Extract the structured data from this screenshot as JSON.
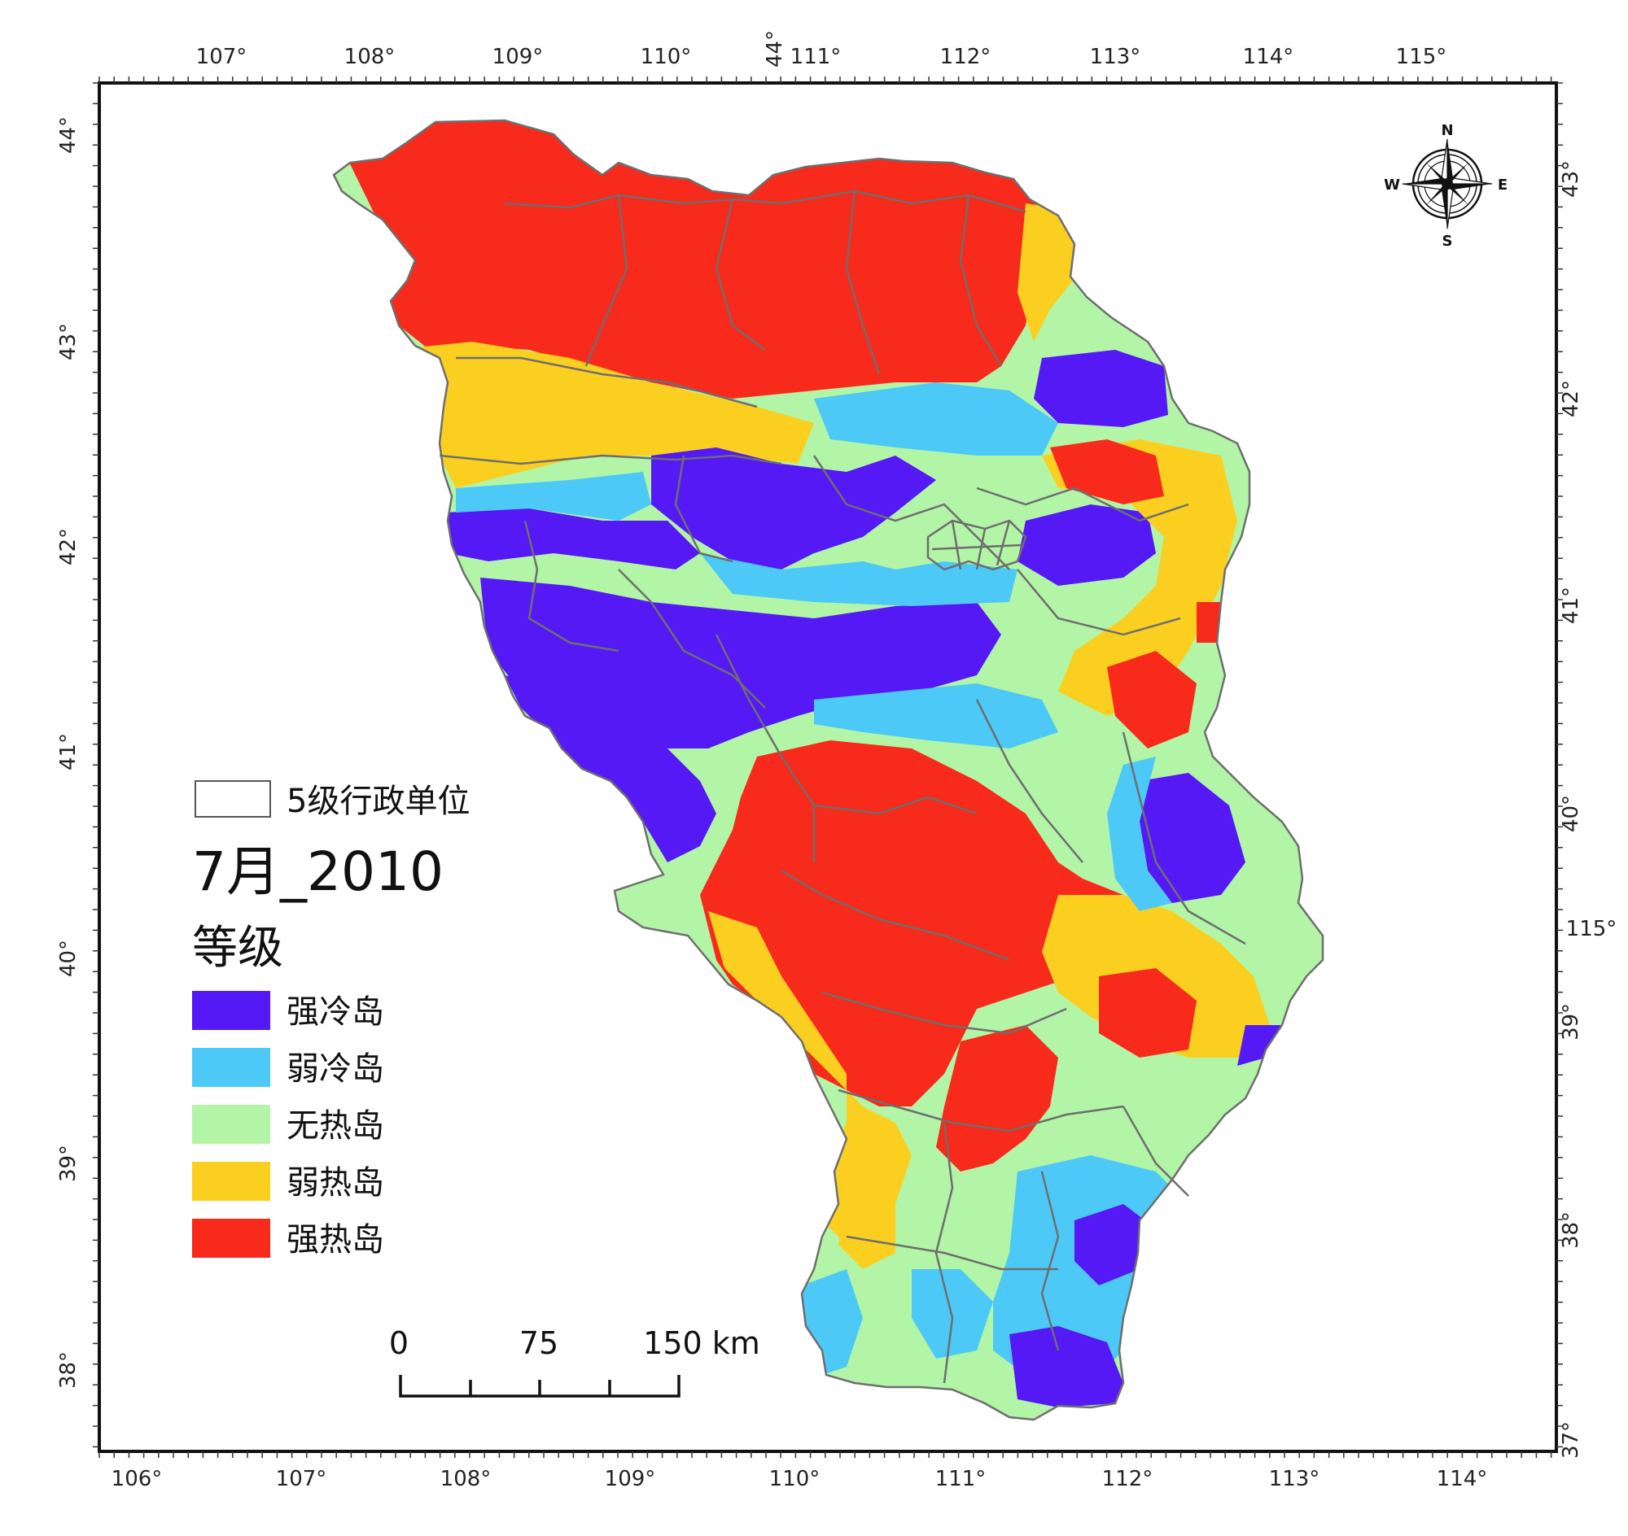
{
  "map": {
    "title": "7月_2010",
    "boundary_label": "5级行政单位",
    "legend_heading": "等级",
    "classes": [
      {
        "label": "强冷岛",
        "color": "#5419f5"
      },
      {
        "label": "弱冷岛",
        "color": "#4cc9f7"
      },
      {
        "label": "无热岛",
        "color": "#b2f5a6"
      },
      {
        "label": "弱热岛",
        "color": "#fbcf1f"
      },
      {
        "label": "强热岛",
        "color": "#f72a1b"
      }
    ],
    "compass": {
      "n": "N",
      "s": "S",
      "e": "E",
      "w": "W"
    },
    "scale_bar": {
      "labels": [
        "0",
        "75",
        "150 km"
      ]
    },
    "graticule": {
      "top": [
        "107°",
        "108°",
        "109°",
        "110°",
        "111°",
        "112°",
        "113°",
        "114°",
        "115°"
      ],
      "top_extra": "44°",
      "bottom": [
        "106°",
        "107°",
        "108°",
        "109°",
        "110°",
        "111°",
        "112°",
        "113°",
        "114°"
      ],
      "left": [
        "44°",
        "43°",
        "42°",
        "41°",
        "40°",
        "39°",
        "38°"
      ],
      "right": [
        "43°",
        "42°",
        "41°",
        "40°",
        "39°",
        "38°",
        "37°"
      ],
      "right_extra": "115°"
    }
  }
}
